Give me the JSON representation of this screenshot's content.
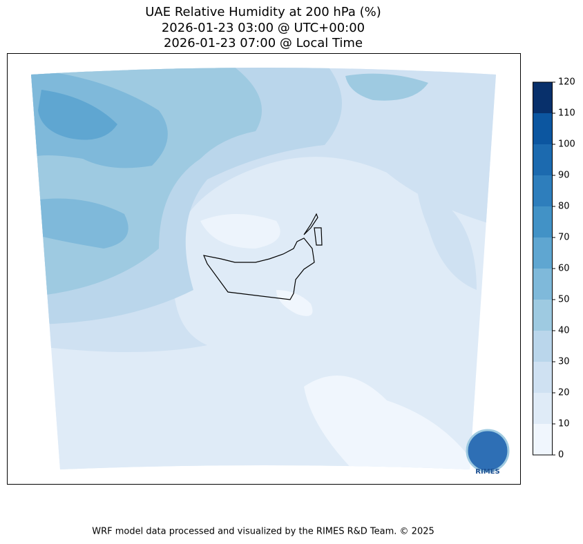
{
  "title": [
    "UAE Relative Humidity at 200 hPa (%)",
    "2026-01-23 03:00 @ UTC+00:00",
    "2026-01-23 07:00 @ Local Time"
  ],
  "colorbar": {
    "ticks": [
      0,
      10,
      20,
      30,
      40,
      50,
      60,
      70,
      80,
      90,
      100,
      110,
      120
    ],
    "colors": [
      "#f0f6fd",
      "#dfebf7",
      "#cfe1f2",
      "#bad6eb",
      "#9ecae1",
      "#7fb9da",
      "#5fa6d1",
      "#4292c6",
      "#2e7ebc",
      "#1c6aaf",
      "#0c56a0",
      "#08306b"
    ]
  },
  "logo": "RIMES",
  "footer": "WRF model data processed and visualized by the RIMES R&D Team. © 2025"
}
